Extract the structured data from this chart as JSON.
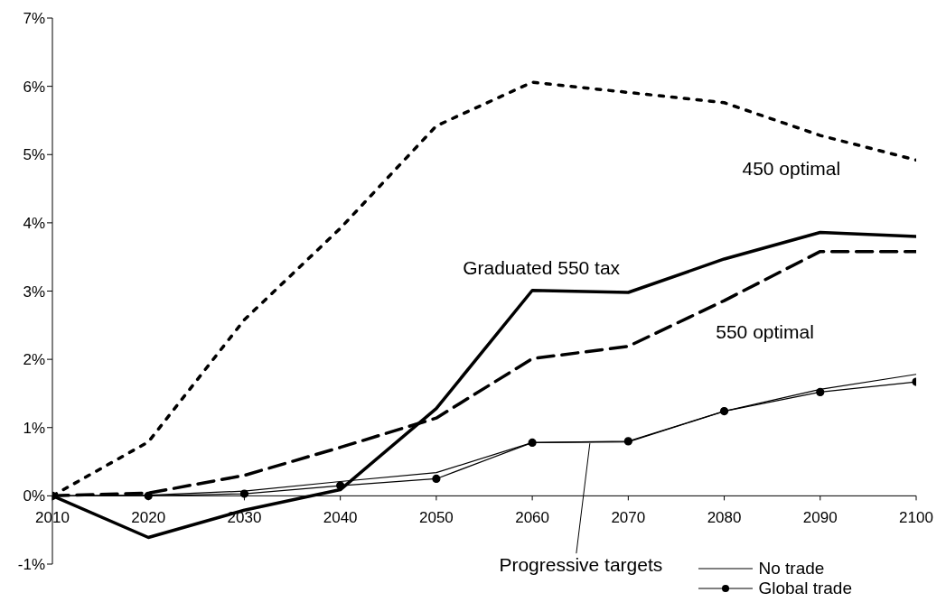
{
  "chart_data": {
    "type": "line",
    "x": [
      2010,
      2020,
      2030,
      2040,
      2050,
      2060,
      2070,
      2080,
      2090,
      2100
    ],
    "series": [
      {
        "color": "#000000",
        "line_style": "dotted",
        "values": [
          0,
          0.79,
          2.58,
          3.92,
          5.42,
          6.06,
          5.91,
          5.76,
          5.28,
          4.92
        ]
      },
      {
        "color": "#000000",
        "line_style": "solid",
        "values": [
          0,
          -0.61,
          -0.21,
          0.09,
          1.28,
          3.01,
          2.98,
          3.47,
          3.86,
          3.8
        ]
      },
      {
        "color": "#000000",
        "line_style": "dashed",
        "values": [
          0,
          0.04,
          0.3,
          0.71,
          1.14,
          2.01,
          2.19,
          2.86,
          3.58,
          3.58
        ]
      },
      {
        "name": "No trade",
        "color": "#000000",
        "line_style": "solid",
        "values": [
          0,
          0.01,
          0.07,
          0.21,
          0.34,
          0.78,
          0.79,
          1.24,
          1.56,
          1.78
        ]
      },
      {
        "name": "Global trade",
        "color": "#000000",
        "line_style": "solid",
        "marker": "circle",
        "values": [
          0,
          0,
          0.03,
          0.15,
          0.25,
          0.78,
          0.8,
          1.24,
          1.52,
          1.67
        ]
      }
    ],
    "annotations": [
      {
        "text": "450 optimal",
        "x": 2090,
        "y": 5.28
      },
      {
        "text": "Graduated 550 tax",
        "x": 2060,
        "y": 3.01
      },
      {
        "text": "550 optimal",
        "x": 2080,
        "y": 2.86
      },
      {
        "text": "Progressive targets",
        "x": 2066,
        "y": 0.77
      }
    ],
    "xlim": [
      2010,
      2100
    ],
    "xticks": [
      2010,
      2020,
      2030,
      2040,
      2050,
      2060,
      2070,
      2080,
      2090,
      2100
    ],
    "ylim": [
      -1,
      7
    ],
    "yticks": [
      {
        "value": -1,
        "label": "-1%"
      },
      {
        "value": 0,
        "label": "0%"
      },
      {
        "value": 1,
        "label": "1%"
      },
      {
        "value": 2,
        "label": "2%"
      },
      {
        "value": 3,
        "label": "3%"
      },
      {
        "value": 4,
        "label": "4%"
      },
      {
        "value": 5,
        "label": "5%"
      },
      {
        "value": 6,
        "label": "6%"
      },
      {
        "value": 7,
        "label": "7%"
      }
    ],
    "grid": false,
    "legend": "bottom right"
  }
}
